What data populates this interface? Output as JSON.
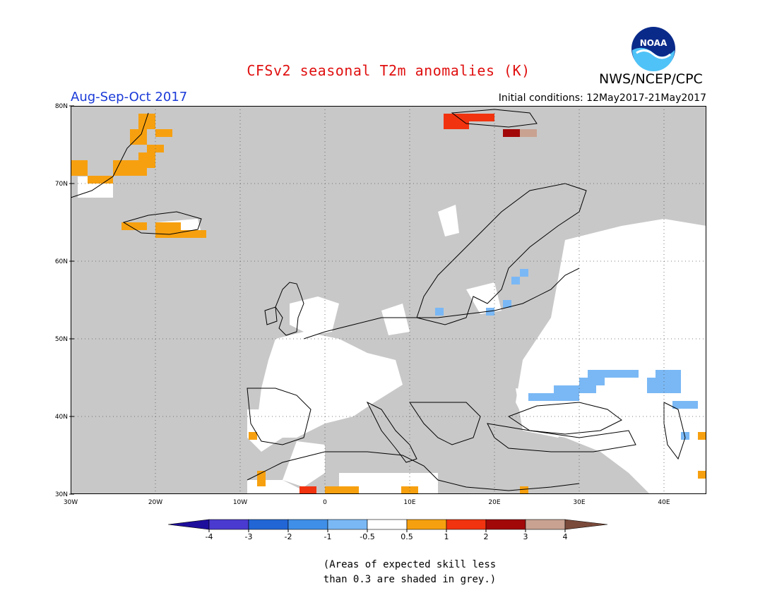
{
  "title": "CFSv2 seasonal T2m anomalies (K)",
  "agency": "NWS/NCEP/CPC",
  "logo_text": "NOAA",
  "period": "Aug-Sep-Oct 2017",
  "initial_conditions": "Initial conditions: 12May2017-21May2017",
  "footnote": "(Areas of expected skill less\nthan 0.3 are shaded in grey.)",
  "map": {
    "lon_range": [
      -30,
      45
    ],
    "lat_range": [
      30,
      80
    ],
    "lat_labels": [
      "80N",
      "70N",
      "60N",
      "50N",
      "40N",
      "30N"
    ],
    "lon_labels": [
      "30W",
      "20W",
      "10W",
      "0",
      "10E",
      "20E",
      "30E",
      "40E"
    ],
    "background": "#c8c8c8"
  },
  "colorbar": {
    "labels": [
      "-4",
      "-3",
      "-2",
      "-1",
      "-0.5",
      "0.5",
      "1",
      "2",
      "3",
      "4"
    ],
    "colors": [
      "#1e0e9c",
      "#4a3ad0",
      "#2266d6",
      "#3f8fe8",
      "#7ab8f5",
      "#ffffff",
      "#f7a00f",
      "#f2330f",
      "#a20808",
      "#c9a292",
      "#7a4a3a"
    ]
  },
  "colors": {
    "grey": "#c8c8c8",
    "white": "#ffffff",
    "orange": "#f7a00f",
    "red": "#f2330f",
    "darkred": "#a20808",
    "rose": "#c9a292",
    "lightblue": "#7ab8f5"
  }
}
